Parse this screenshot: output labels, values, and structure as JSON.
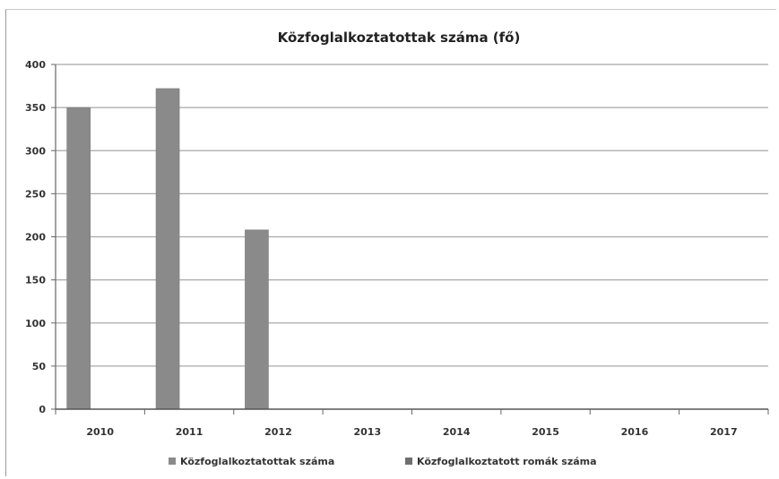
{
  "chart_data": {
    "type": "bar",
    "title": "Közfoglalkoztatottak száma (fő)",
    "categories": [
      "2010",
      "2011",
      "2012",
      "2013",
      "2014",
      "2015",
      "2016",
      "2017"
    ],
    "series": [
      {
        "name": "Közfoglalkoztatottak száma",
        "color": "#8a8a8a",
        "values": [
          350,
          372,
          208,
          null,
          null,
          null,
          null,
          null
        ]
      },
      {
        "name": "Közfoglalkoztatott romák száma",
        "color": "#6e6e6e",
        "values": [
          null,
          null,
          null,
          null,
          null,
          null,
          null,
          null
        ]
      }
    ],
    "ylim": [
      0,
      400
    ],
    "yticks": [
      0,
      50,
      100,
      150,
      200,
      250,
      300,
      350,
      400
    ],
    "grid": true,
    "legend": "bottom"
  }
}
